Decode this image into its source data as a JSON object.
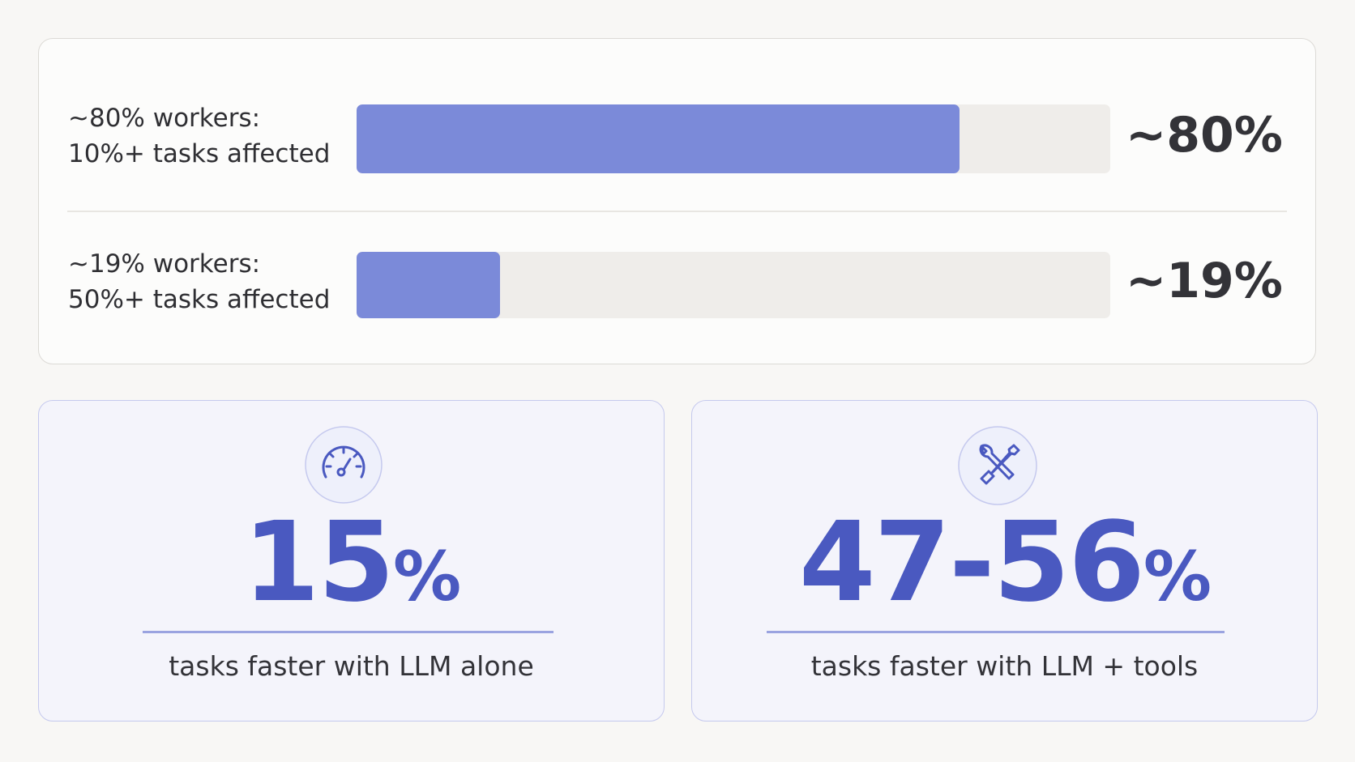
{
  "bars": {
    "xlim": [
      0,
      100
    ],
    "color": "#7b8ad9",
    "rows": [
      {
        "label": [
          "~80% workers:",
          "10%+ tasks affected"
        ],
        "value": 80,
        "value_label": "~80%"
      },
      {
        "label": [
          "~19% workers:",
          "50%+ tasks affected"
        ],
        "value": 19,
        "value_label": "~19%"
      }
    ]
  },
  "stats": [
    {
      "number": "15",
      "unit": "%",
      "caption": "tasks faster with LLM alone"
    },
    {
      "number": "47-56",
      "unit": "%",
      "caption": "tasks faster with LLM + tools"
    }
  ]
}
